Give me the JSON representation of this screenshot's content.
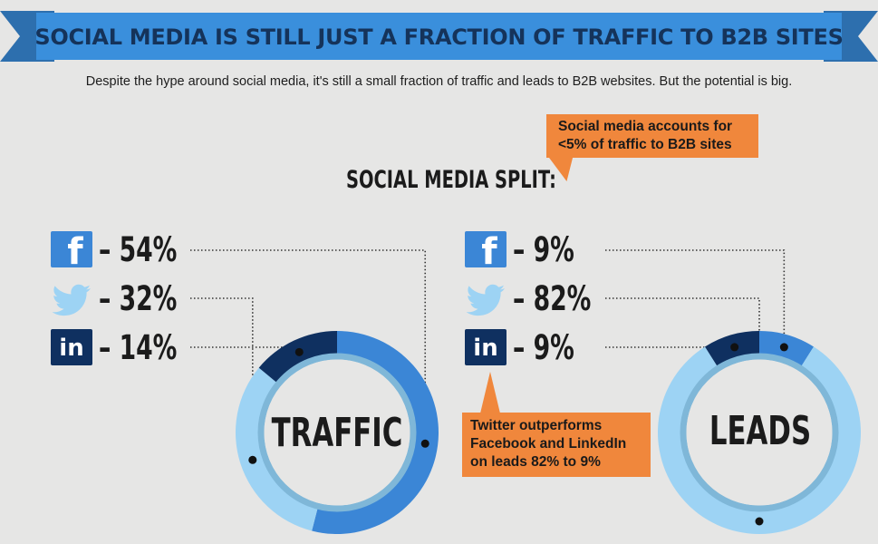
{
  "header": {
    "title": "SOCIAL MEDIA IS STILL JUST A FRACTION OF TRAFFIC TO B2B SITES",
    "subtitle": "Despite the hype around social media, it's still a small fraction of traffic and leads to B2B websites. But the potential is big."
  },
  "section_title": "SOCIAL MEDIA SPLIT:",
  "callouts": {
    "top": [
      "Social media accounts for",
      "<5% of traffic to B2B sites"
    ],
    "bottom": [
      "Twitter outperforms",
      "Facebook and LinkedIn",
      "on leads 82% to 9%"
    ]
  },
  "icons": {
    "facebook": "facebook-icon",
    "twitter": "twitter-icon",
    "linkedin": "linkedin-icon"
  },
  "colors": {
    "banner": "#3a8fdc",
    "facebook": "#3b86d6",
    "twitter": "#9dd3f4",
    "linkedin": "#0f3060",
    "callout": "#f0873c",
    "ring_inner": "#7fb7d8"
  },
  "chart_data": [
    {
      "type": "pie",
      "style": "donut",
      "label": "TRAFFIC",
      "categories": [
        "Facebook",
        "Twitter",
        "LinkedIn"
      ],
      "values": [
        54,
        32,
        14
      ],
      "value_labels": [
        "– 54%",
        "– 32%",
        "– 14%"
      ]
    },
    {
      "type": "pie",
      "style": "donut",
      "label": "LEADS",
      "categories": [
        "Facebook",
        "Twitter",
        "LinkedIn"
      ],
      "values": [
        9,
        82,
        9
      ],
      "value_labels": [
        "– 9%",
        "– 82%",
        "– 9%"
      ]
    }
  ]
}
